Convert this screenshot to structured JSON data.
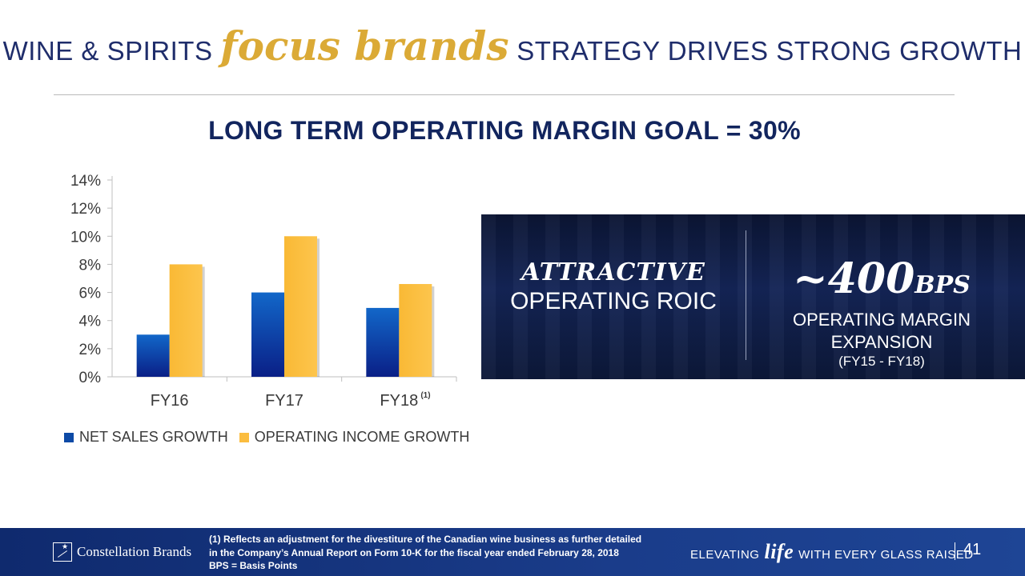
{
  "header": {
    "title_pre": "WINE & SPIRITS",
    "title_accent": "focus brands",
    "title_post": "STRATEGY DRIVES STRONG GROWTH",
    "subtitle": "LONG TERM OPERATING MARGIN GOAL = 30%"
  },
  "chart_data": {
    "type": "bar",
    "categories": [
      "FY16",
      "FY17",
      "FY18"
    ],
    "category_footnotes": [
      "",
      "",
      "(1)"
    ],
    "series": [
      {
        "name": "NET SALES GROWTH",
        "values": [
          3.0,
          6.0,
          4.9
        ],
        "color": "#0d4aa6"
      },
      {
        "name": "OPERATING INCOME GROWTH",
        "values": [
          8.0,
          10.0,
          6.6
        ],
        "color": "#fbbd3f"
      }
    ],
    "yticks": [
      "0%",
      "2%",
      "4%",
      "6%",
      "8%",
      "10%",
      "12%",
      "14%"
    ],
    "ylim": [
      0,
      14
    ],
    "xlabel": "",
    "ylabel": "",
    "grid": false,
    "legend": "bottom"
  },
  "panel": {
    "left_line1": "ATTRACTIVE",
    "left_line2": "OPERATING ROIC",
    "right_big": "~400",
    "right_unit": "BPS",
    "right_line2a": "OPERATING MARGIN",
    "right_line2b": "EXPANSION",
    "right_line3": "(FY15 - FY18)"
  },
  "footer": {
    "logo_name": "Constellation Brands",
    "footnote_1": "(1) Reflects an adjustment for the divestiture of the Canadian wine business as further detailed",
    "footnote_2": "in the Company’s Annual Report on Form 10-K for the fiscal year ended February 28, 2018",
    "footnote_3": "BPS = Basis Points",
    "tag_pre": "ELEVATING",
    "tag_life": "life",
    "tag_post": "WITH EVERY GLASS RAISED",
    "page_number": "41"
  }
}
